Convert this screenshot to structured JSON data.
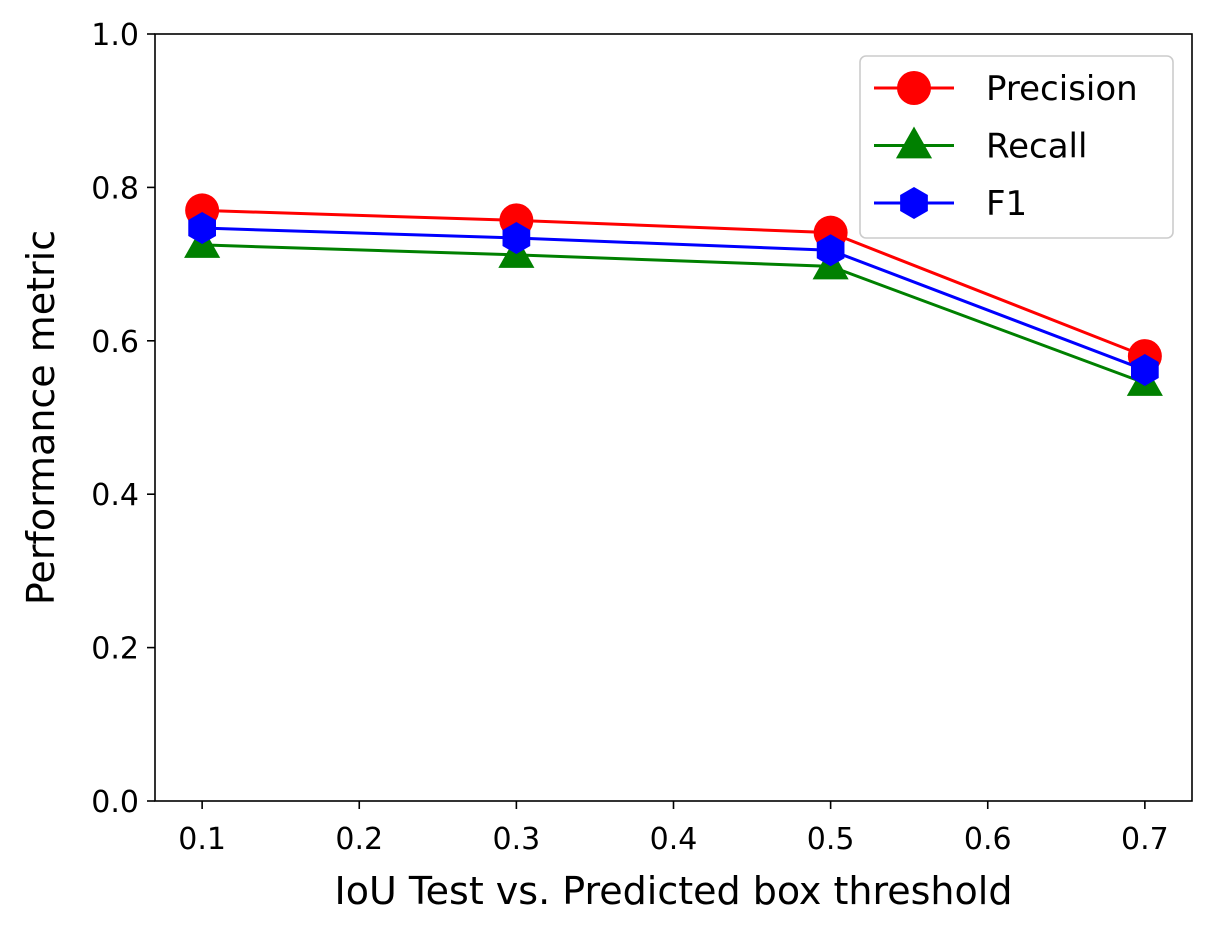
{
  "chart_data": {
    "type": "line",
    "title": "",
    "xlabel": "IoU Test vs. Predicted box threshold",
    "ylabel": "Performance metric",
    "x": [
      0.1,
      0.3,
      0.5,
      0.7
    ],
    "xlim": [
      0.07,
      0.73
    ],
    "ylim": [
      0.0,
      1.0
    ],
    "xticks": [
      "0.1",
      "0.2",
      "0.3",
      "0.4",
      "0.5",
      "0.6",
      "0.7"
    ],
    "yticks": [
      "0.0",
      "0.2",
      "0.4",
      "0.6",
      "0.8",
      "1.0"
    ],
    "grid": false,
    "legend_position": "top-right",
    "series": [
      {
        "name": "Precision",
        "color": "#ff0000",
        "marker": "circle",
        "values": [
          0.77,
          0.757,
          0.741,
          0.58
        ]
      },
      {
        "name": "Recall",
        "color": "#008000",
        "marker": "triangle",
        "values": [
          0.725,
          0.712,
          0.697,
          0.545
        ]
      },
      {
        "name": "F1",
        "color": "#0000ff",
        "marker": "hexagon",
        "values": [
          0.747,
          0.734,
          0.718,
          0.562
        ]
      }
    ]
  }
}
